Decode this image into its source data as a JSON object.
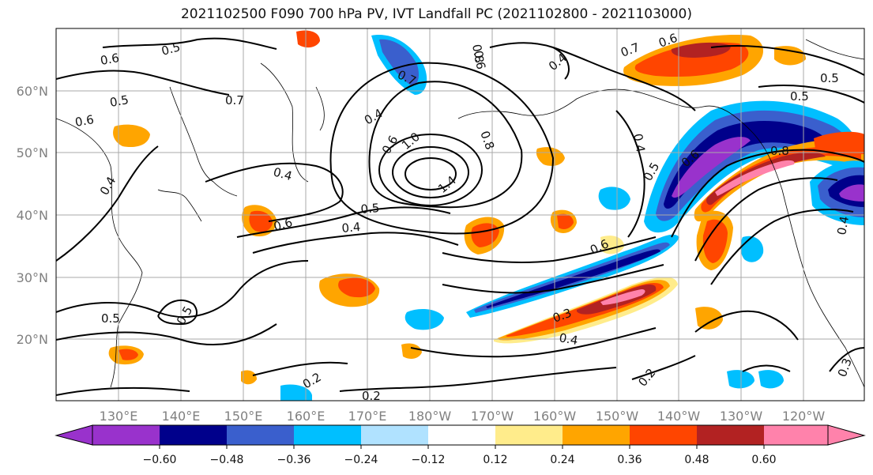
{
  "title": "2021102500 F090 700 hPa PV, IVT Landfall PC (2021102800 - 2021103000)",
  "map": {
    "lat_labels": [
      "60°N",
      "50°N",
      "40°N",
      "30°N",
      "20°N"
    ],
    "lon_labels": [
      "130°E",
      "140°E",
      "150°E",
      "160°E",
      "170°E",
      "180°W",
      "170°W",
      "160°W",
      "150°W",
      "140°W",
      "130°W",
      "120°W"
    ],
    "contour_labels": [
      {
        "text": "0.6"
      },
      {
        "text": "0.5"
      },
      {
        "text": "0.7"
      },
      {
        "text": "0.4"
      },
      {
        "text": "0.6"
      },
      {
        "text": "0.7"
      },
      {
        "text": "0.8"
      },
      {
        "text": "0.5"
      },
      {
        "text": "0.6"
      },
      {
        "text": "0.5"
      },
      {
        "text": "0.7"
      },
      {
        "text": "0.4"
      },
      {
        "text": "0.6"
      },
      {
        "text": "1.0"
      },
      {
        "text": "1.4"
      },
      {
        "text": "0.8"
      },
      {
        "text": "0.6"
      },
      {
        "text": "0.4"
      },
      {
        "text": "0.5"
      },
      {
        "text": "0.4"
      },
      {
        "text": "0.6"
      },
      {
        "text": "0.8"
      },
      {
        "text": "0.4"
      },
      {
        "text": "0.5"
      },
      {
        "text": "0.6"
      },
      {
        "text": "0.5"
      },
      {
        "text": "0.5"
      },
      {
        "text": "0.6"
      },
      {
        "text": "0.2"
      },
      {
        "text": "0.2"
      },
      {
        "text": "0.3"
      },
      {
        "text": "0.4"
      },
      {
        "text": "0.2"
      },
      {
        "text": "0.3"
      },
      {
        "text": "0.4"
      },
      {
        "text": "0.4"
      },
      {
        "text": "0.5"
      }
    ]
  },
  "colorbar": {
    "colors": [
      "#9932cc",
      "#00008b",
      "#3a5fcd",
      "#00bfff",
      "#b0e2ff",
      "#ffffff",
      "#ffec8b",
      "#ffa500",
      "#ff4500",
      "#b22222",
      "#ff82ab"
    ],
    "tick_labels": [
      "−0.60",
      "−0.48",
      "−0.36",
      "−0.24",
      "−0.12",
      "0.12",
      "0.24",
      "0.36",
      "0.48",
      "0.60"
    ]
  }
}
